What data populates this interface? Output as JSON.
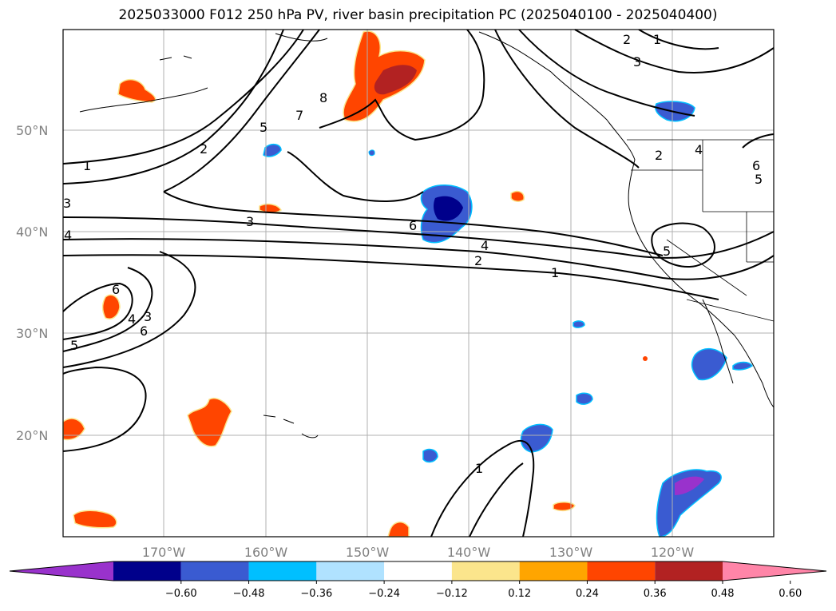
{
  "title": "2025033000 F012 250 hPa PV, river basin precipitation PC (2025040100 - 2025040400)",
  "map": {
    "lon_range": [
      -180,
      -110
    ],
    "lat_range": [
      10,
      60
    ],
    "lat_labels": [
      "20°N",
      "30°N",
      "40°N",
      "50°N"
    ],
    "lon_labels": [
      "170°W",
      "160°W",
      "150°W",
      "140°W",
      "130°W",
      "120°W"
    ],
    "pv_contour_labels": [
      "1",
      "2",
      "3",
      "4",
      "5",
      "6",
      "7",
      "8",
      "1",
      "2",
      "3",
      "4",
      "5",
      "6",
      "1",
      "2",
      "3",
      "4",
      "5",
      "6",
      "1",
      "2",
      "3",
      "4",
      "5",
      "6"
    ]
  },
  "colorbar": {
    "ticks": [
      "−0.60",
      "−0.48",
      "−0.36",
      "−0.24",
      "−0.12",
      "0.12",
      "0.24",
      "0.36",
      "0.48",
      "0.60"
    ],
    "colors": [
      "#9932cc",
      "#00008b",
      "#3a5bd1",
      "#00bfff",
      "#b0e2ff",
      "#ffffff",
      "#fbe58c",
      "#ffa500",
      "#ff4500",
      "#b22222",
      "#ff85a8"
    ]
  }
}
